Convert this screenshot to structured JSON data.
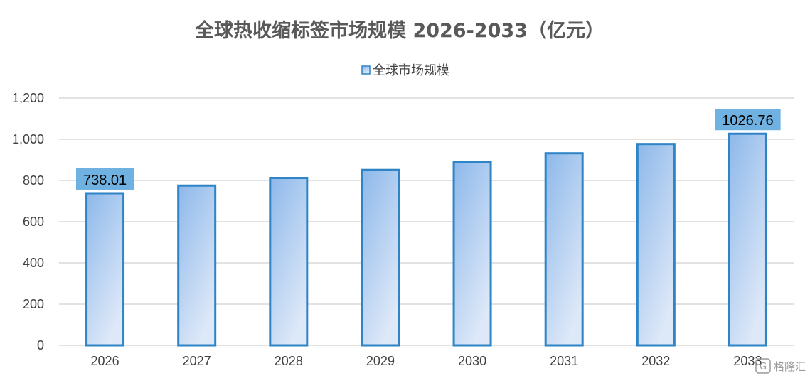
{
  "chart_data": {
    "type": "bar",
    "title": "全球热收缩标签市场规模 2026-2033（亿元）",
    "categories": [
      "2026",
      "2027",
      "2028",
      "2029",
      "2030",
      "2031",
      "2032",
      "2033"
    ],
    "series": [
      {
        "name": "全球市场规模",
        "values": [
          738.01,
          775,
          812,
          851,
          889,
          932,
          977,
          1026.76
        ]
      }
    ],
    "data_labels": [
      {
        "category": "2026",
        "text": "738.01"
      },
      {
        "category": "2033",
        "text": "1026.76"
      }
    ],
    "ylim": [
      0,
      1200
    ],
    "yticks": [
      0,
      200,
      400,
      600,
      800,
      1000,
      1200
    ],
    "ytick_labels": [
      "0",
      "200",
      "400",
      "600",
      "800",
      "1,000",
      "1,200"
    ],
    "xlabel": "",
    "ylabel": "",
    "grid": true,
    "legend_position": "top-center",
    "colors": {
      "bar_top": "#8db8ea",
      "bar_bottom": "#dde8f8",
      "bar_border": "#2e84c5",
      "label_box": "#6fb1e0",
      "grid": "#d9d9d9",
      "title": "#595959"
    }
  },
  "watermark": {
    "text": "格隆汇",
    "icon": "glh-logo-icon"
  }
}
